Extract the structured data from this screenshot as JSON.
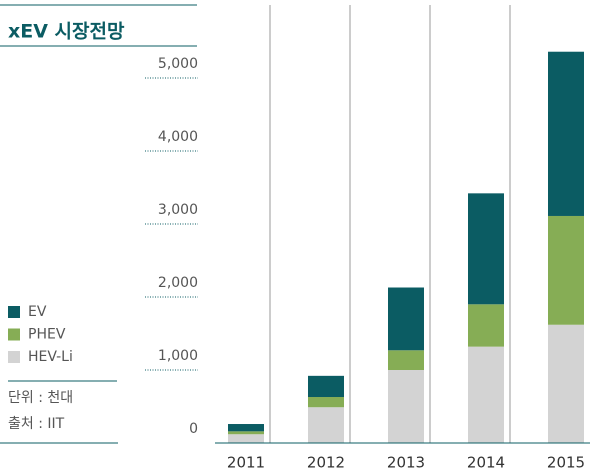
{
  "chart_data": {
    "type": "bar",
    "stacked": true,
    "title": "xEV 시장전망",
    "categories": [
      "2011",
      "2012",
      "2013",
      "2014",
      "2015"
    ],
    "series": [
      {
        "name": "HEV-Li",
        "color": "#d3d3d3",
        "values": [
          120,
          490,
          1000,
          1320,
          1620
        ]
      },
      {
        "name": "PHEV",
        "color": "#86ad55",
        "values": [
          40,
          140,
          270,
          580,
          1490
        ]
      },
      {
        "name": "EV",
        "color": "#0b5c63",
        "values": [
          100,
          290,
          860,
          1520,
          2250
        ]
      }
    ],
    "ylim": [
      0,
      6000
    ],
    "yticks": [
      0,
      {
        "value": 1000,
        "label": "1,000"
      },
      {
        "value": 2000,
        "label": "2,000"
      },
      {
        "value": 3000,
        "label": "3,000"
      },
      {
        "value": 4000,
        "label": "4,000"
      },
      {
        "value": 5000,
        "label": "5,000"
      }
    ],
    "unit_note": "단위 : 천대",
    "source_note": "출처 : IIT"
  }
}
